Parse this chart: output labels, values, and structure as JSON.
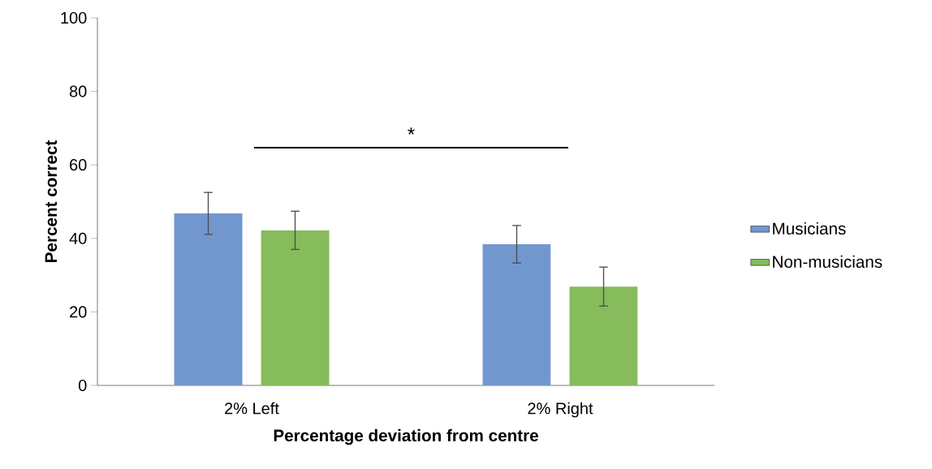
{
  "chart_data": {
    "type": "bar",
    "xlabel": "Percentage deviation from centre",
    "ylabel": "Percent correct",
    "categories": [
      "2% Left",
      "2% Right"
    ],
    "series": [
      {
        "name": "Musicians",
        "color": "#7297cf",
        "values": [
          46.8,
          38.4
        ],
        "errors": [
          5.7,
          5.1
        ]
      },
      {
        "name": "Non-musicians",
        "color": "#86bc5b",
        "values": [
          42.2,
          26.9
        ],
        "errors": [
          5.2,
          5.3
        ]
      }
    ],
    "ylim": [
      0,
      100
    ],
    "yticks": [
      0,
      20,
      40,
      60,
      80,
      100
    ],
    "legend": "right",
    "annotations": [
      "*"
    ]
  }
}
